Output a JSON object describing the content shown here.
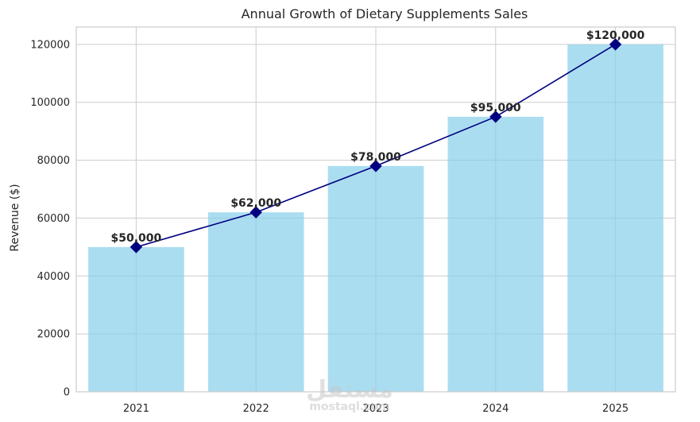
{
  "chart_data": {
    "type": "bar",
    "title": "Annual Growth of Dietary Supplements Sales",
    "xlabel": "",
    "ylabel": "Revenue ($)",
    "categories": [
      "2021",
      "2022",
      "2023",
      "2024",
      "2025"
    ],
    "values": [
      50000,
      62000,
      78000,
      95000,
      120000
    ],
    "data_labels": [
      "$50,000",
      "$62,000",
      "$78,000",
      "$95,000",
      "$120,000"
    ],
    "overlay_line": {
      "type": "line",
      "values": [
        50000,
        62000,
        78000,
        95000,
        120000
      ],
      "marker": "diamond"
    },
    "ylim": [
      0,
      126000
    ],
    "yticks": [
      0,
      20000,
      40000,
      60000,
      80000,
      100000,
      120000
    ],
    "ytick_labels": [
      "0",
      "20000",
      "40000",
      "60000",
      "80000",
      "100000",
      "120000"
    ],
    "grid": true,
    "colors": {
      "bar": "#87ceeb",
      "line": "#000080",
      "grid": "#cccccc",
      "axis": "#cccccc"
    }
  },
  "watermark": {
    "arabic": "مستقل",
    "latin": "mostaql.com"
  }
}
